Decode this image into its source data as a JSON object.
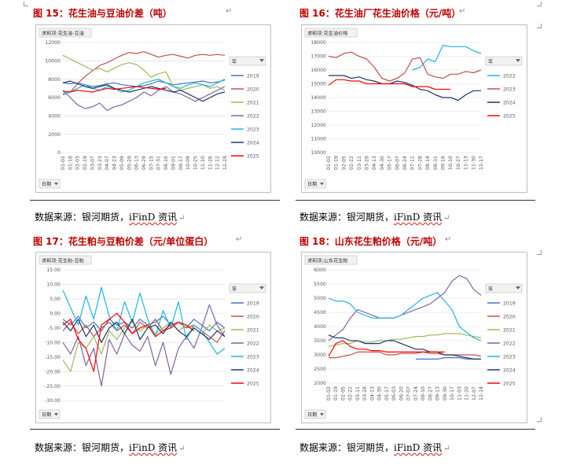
{
  "page": {
    "return_mark": "↵",
    "source_prefix": "数据来源：银河期货，",
    "source_brand": "iFinD 资讯"
  },
  "figures": [
    {
      "title": "图 15：花生油与豆油价差（吨）"
    },
    {
      "title": "图 16：花生油厂花生油价格（元/吨）"
    },
    {
      "title": "图 17：花生粕与豆粕价差（元/单位蛋白）"
    },
    {
      "title": "图 18：山东花生粕价格（元/吨）"
    }
  ],
  "chart_data": [
    {
      "type": "line",
      "field_label": "求和项:花生油-豆油",
      "filter_label": "日期",
      "legend_title": "年",
      "ylim": [
        0,
        12000
      ],
      "yticks": [
        "12000",
        "10000",
        "8000",
        "6000",
        "4000",
        "2000",
        "0"
      ],
      "xticks": [
        "01-02",
        "01-18",
        "02-03",
        "02-19",
        "03-07",
        "03-23",
        "04-07",
        "04-23",
        "05-09",
        "05-28",
        "06-13",
        "06-29",
        "07-15",
        "07-31",
        "08-16",
        "09-01",
        "09-17",
        "10-09",
        "10-25",
        "11-10",
        "11-26",
        "12-12",
        "12-28"
      ],
      "series": [
        {
          "name": "2019",
          "color": "#4472c4",
          "values": [
            7600,
            7500,
            7600,
            7400,
            7200,
            7300,
            7500,
            7600,
            7400,
            7300,
            7200,
            7300,
            7500,
            7800,
            7600,
            7400,
            7500,
            7600,
            7700,
            7800,
            7600,
            7700,
            7900
          ]
        },
        {
          "name": "2020",
          "color": "#c0504d",
          "values": [
            6300,
            6600,
            7500,
            8300,
            8900,
            9500,
            9800,
            10200,
            10600,
            10900,
            10800,
            11000,
            10700,
            10400,
            10600,
            10700,
            10500,
            10300,
            10600,
            10700,
            10600,
            10700,
            10600
          ]
        },
        {
          "name": "2021",
          "color": "#9bbb59",
          "values": [
            10600,
            10200,
            9800,
            9400,
            9000,
            9200,
            8800,
            9200,
            9600,
            9800,
            9600,
            9000,
            8200,
            8600,
            8800,
            7200,
            6800,
            7000,
            7200,
            7400,
            7000,
            7200,
            6800
          ]
        },
        {
          "name": "2022",
          "color": "#8064a2",
          "values": [
            6800,
            6000,
            5200,
            4800,
            5000,
            5400,
            4600,
            5000,
            5200,
            5600,
            6000,
            6600,
            6200,
            6800,
            7200,
            6600,
            6400,
            6000,
            5600,
            6000,
            6400,
            6800,
            7200
          ]
        },
        {
          "name": "2023",
          "color": "#1fb5e0",
          "values": [
            6400,
            6600,
            7000,
            7400,
            7000,
            6800,
            7200,
            7000,
            6600,
            6800,
            7200,
            7600,
            7800,
            8000,
            7600,
            7200,
            7000,
            7400,
            7600,
            7400,
            7200,
            7600,
            8000
          ]
        },
        {
          "name": "2024",
          "color": "#1f3864",
          "values": [
            7600,
            7800,
            7500,
            7200,
            7000,
            7200,
            7400,
            7000,
            6800,
            6600,
            6800,
            7000,
            7200,
            7000,
            6800,
            6600,
            6800,
            6400,
            6000,
            5600,
            6000,
            6400,
            6600
          ]
        },
        {
          "name": "2025",
          "color": "#ff0000",
          "values": [
            6700,
            6600,
            6800,
            6700,
            6600,
            6800,
            7000,
            6900,
            7000,
            7100,
            7200,
            7100,
            7000,
            6900,
            7000,
            null,
            null,
            null,
            null,
            null,
            null,
            null,
            null
          ]
        }
      ]
    },
    {
      "type": "line",
      "field_label": "求和项:花生油价格",
      "filter_label": "日期",
      "legend_title": "年",
      "ylim": [
        10000,
        18000
      ],
      "yticks": [
        "18000",
        "17000",
        "16000",
        "15000",
        "14000",
        "13000",
        "12000",
        "11000",
        "10000"
      ],
      "xticks": [
        "01-02",
        "01-19",
        "02-05",
        "02-22",
        "03-11",
        "03-28",
        "04-13",
        "04-30",
        "05-17",
        "06-07",
        "06-24",
        "07-11",
        "07-28",
        "08-14",
        "08-31",
        "09-18",
        "10-10",
        "10-27",
        "11-13",
        "11-30",
        "12-17"
      ],
      "series": [
        {
          "name": "2022",
          "color": "#1fb5e0",
          "values": [
            null,
            null,
            null,
            null,
            null,
            null,
            null,
            null,
            null,
            null,
            null,
            16000,
            16200,
            16800,
            16600,
            17800,
            17700,
            17700,
            17700,
            17400,
            17200
          ]
        },
        {
          "name": "2023",
          "color": "#c0504d",
          "values": [
            17000,
            16900,
            17200,
            17300,
            17000,
            16800,
            16200,
            15400,
            15200,
            15400,
            15800,
            16800,
            16900,
            15700,
            15500,
            15400,
            15700,
            15700,
            15900,
            15800,
            16000
          ]
        },
        {
          "name": "2024",
          "color": "#1f3864",
          "values": [
            15600,
            15600,
            15600,
            15400,
            15500,
            15300,
            15200,
            15000,
            15000,
            15200,
            15100,
            14900,
            14600,
            14500,
            14200,
            14000,
            14000,
            13800,
            14200,
            14500,
            14500
          ]
        },
        {
          "name": "2025",
          "color": "#ff0000",
          "values": [
            14900,
            15300,
            15300,
            15200,
            15200,
            15000,
            15000,
            15000,
            15000,
            15000,
            15000,
            14800,
            14800,
            14800,
            14600,
            14600,
            14600,
            null,
            null,
            null,
            null
          ]
        }
      ]
    },
    {
      "type": "line",
      "field_label": "求和项:花生粕-豆粕",
      "filter_label": "日期",
      "legend_title": "年",
      "ylim": [
        -30,
        15
      ],
      "yticks": [
        "15.00",
        "10.00",
        "5.00",
        "0.00",
        "-5.00",
        "-10.00",
        "-15.00",
        "-20.00",
        "-25.00",
        "-30.00"
      ],
      "xticks": [],
      "series": [
        {
          "name": "2019",
          "color": "#4472c4",
          "values": [
            -2,
            -4,
            -1,
            -5,
            -3,
            -6,
            -2,
            -4,
            -3,
            -5,
            -2,
            -4,
            -3,
            -1,
            -4,
            -3,
            -5,
            -2,
            -4,
            -6,
            -3,
            -5
          ]
        },
        {
          "name": "2020",
          "color": "#c0504d",
          "values": [
            -6,
            -3,
            -7,
            -4,
            -8,
            -5,
            -3,
            -6,
            -4,
            -7,
            -3,
            -5,
            -2,
            -6,
            -4,
            -3,
            -5,
            -4,
            -6,
            -8,
            -10,
            -6
          ]
        },
        {
          "name": "2021",
          "color": "#9bbb59",
          "values": [
            -16,
            -20,
            -10,
            -12,
            -8,
            -14,
            -6,
            -9,
            -5,
            -3,
            -6,
            -4,
            -7,
            -5,
            -3,
            -6,
            -4,
            -5,
            -7,
            -4,
            -6,
            -5
          ]
        },
        {
          "name": "2022",
          "color": "#8064a2",
          "values": [
            -10,
            -14,
            -8,
            -18,
            -12,
            -25,
            -9,
            -14,
            -7,
            -11,
            -13,
            -8,
            -18,
            -10,
            -21,
            -12,
            -8,
            -12,
            -5,
            3,
            -4,
            -8
          ]
        },
        {
          "name": "2023",
          "color": "#1fb5e0",
          "values": [
            8,
            2,
            -4,
            6,
            -2,
            9,
            -1,
            -6,
            4,
            -3,
            7,
            -2,
            -8,
            1,
            -5,
            4,
            -9,
            -4,
            -6,
            -10,
            -14,
            -12
          ]
        },
        {
          "name": "2024",
          "color": "#1f3864",
          "values": [
            -3,
            -6,
            -2,
            -8,
            -4,
            -10,
            -5,
            -3,
            -7,
            -2,
            -9,
            -5,
            -4,
            -7,
            -3,
            -6,
            -8,
            -5,
            -7,
            -9,
            -6,
            -8
          ]
        },
        {
          "name": "2025",
          "color": "#ff0000",
          "values": [
            -4,
            -2,
            -9,
            -12,
            -20,
            -4,
            -2,
            0,
            -3,
            -7,
            -5,
            -4,
            -8,
            -6,
            -5,
            -3,
            -4,
            -6,
            null,
            null,
            null,
            null
          ]
        }
      ]
    },
    {
      "type": "line",
      "field_label": "求和项:山东花生粕",
      "filter_label": "日期",
      "legend_title": "年",
      "ylim": [
        2000,
        6000
      ],
      "yticks": [
        "6000",
        "5500",
        "5000",
        "4500",
        "4000",
        "3500",
        "3000",
        "2500",
        "2000"
      ],
      "xticks": [
        "01-02",
        "01-19",
        "02-05",
        "02-22",
        "03-11",
        "03-28",
        "04-13",
        "04-30",
        "05-17",
        "06-03",
        "06-20",
        "07-07",
        "07-24",
        "08-10",
        "08-27",
        "09-13",
        "09-30",
        "10-17",
        "11-03",
        "11-20",
        "12-07",
        "12-24"
      ],
      "series": [
        {
          "name": "2019",
          "color": "#4472c4",
          "values": [
            null,
            null,
            null,
            null,
            null,
            null,
            null,
            null,
            null,
            null,
            null,
            null,
            2850,
            2850,
            2850,
            2850,
            2900,
            2900,
            2900,
            2850,
            2850,
            2850
          ]
        },
        {
          "name": "2020",
          "color": "#c0504d",
          "values": [
            2900,
            2900,
            2950,
            3000,
            3100,
            3100,
            3100,
            3100,
            3000,
            3000,
            3050,
            3050,
            3050,
            3100,
            3050,
            3050,
            3000,
            3000,
            3000,
            3000,
            3000,
            2950
          ]
        },
        {
          "name": "2021",
          "color": "#9bbb59",
          "values": [
            3300,
            3350,
            3400,
            3400,
            3500,
            3450,
            3450,
            3500,
            3500,
            3550,
            3550,
            3600,
            3650,
            3650,
            3700,
            3700,
            3750,
            3750,
            3750,
            3700,
            3650,
            3600
          ]
        },
        {
          "name": "2022",
          "color": "#8064a2",
          "values": [
            3500,
            3700,
            3900,
            4300,
            4600,
            4500,
            4400,
            4300,
            4300,
            4300,
            4400,
            4500,
            4600,
            4700,
            4800,
            5000,
            5200,
            5600,
            5800,
            5700,
            5300,
            5100
          ]
        },
        {
          "name": "2023",
          "color": "#1fb5e0",
          "values": [
            5000,
            4900,
            4900,
            4800,
            4500,
            4400,
            4300,
            4300,
            4300,
            4300,
            4400,
            4600,
            4800,
            5000,
            5100,
            5200,
            4900,
            4600,
            4000,
            3800,
            3600,
            3500
          ]
        },
        {
          "name": "2024",
          "color": "#1f3864",
          "values": [
            3700,
            3600,
            3600,
            3500,
            3500,
            3400,
            3400,
            3400,
            3500,
            3500,
            3400,
            3300,
            3200,
            3200,
            3100,
            3100,
            3000,
            3000,
            2950,
            2900,
            2850,
            2850
          ]
        },
        {
          "name": "2025",
          "color": "#ff0000",
          "values": [
            2950,
            3400,
            3500,
            3300,
            3200,
            3200,
            3150,
            3150,
            3100,
            3100,
            3100,
            3100,
            3100,
            3100,
            3100,
            3100,
            3100,
            null,
            null,
            null,
            null,
            null
          ]
        }
      ]
    }
  ]
}
